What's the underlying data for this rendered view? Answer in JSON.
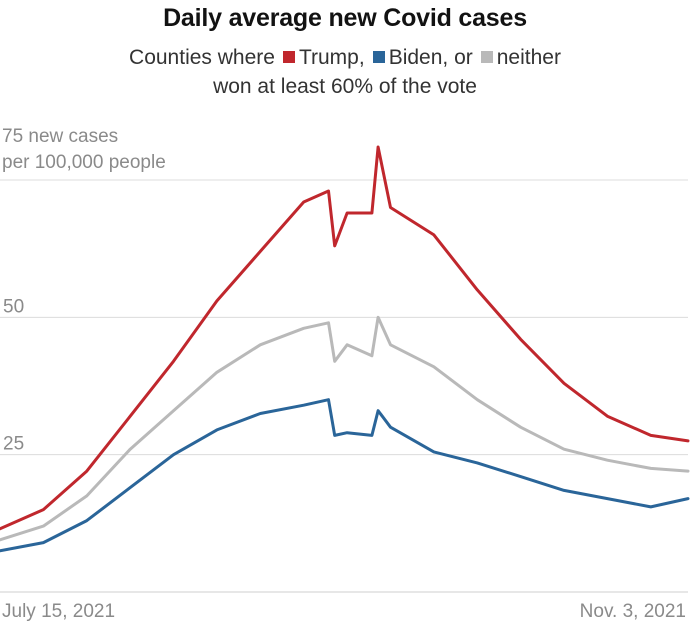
{
  "chart_data": {
    "type": "line",
    "title": "Daily average new Covid cases",
    "subtitle": {
      "prefix": "Counties where",
      "trump": "Trump,",
      "biden": "Biden, or",
      "neither": "neither",
      "line2": "won at least 60% of the vote"
    },
    "ylabel": [
      "75 new cases",
      "per 100,000 people"
    ],
    "yticks": [
      "50",
      "25"
    ],
    "ylim": [
      0,
      75
    ],
    "x_start_label": "July 15, 2021",
    "x_end_label": "Nov. 3, 2021",
    "x_start": "2021-07-15",
    "x_end": "2021-11-03",
    "grid": true,
    "legend": "inline in subtitle",
    "colors": {
      "trump": "#c0272d",
      "biden": "#2a6599",
      "neither": "#b9b9b9",
      "grid": "#dcdcdc",
      "muted_text": "#8a8a8a"
    },
    "x": [
      "2021-07-15",
      "2021-07-22",
      "2021-07-29",
      "2021-08-05",
      "2021-08-12",
      "2021-08-19",
      "2021-08-26",
      "2021-09-02",
      "2021-09-06",
      "2021-09-07",
      "2021-09-09",
      "2021-09-13",
      "2021-09-14",
      "2021-09-16",
      "2021-09-23",
      "2021-09-30",
      "2021-10-07",
      "2021-10-14",
      "2021-10-21",
      "2021-10-28",
      "2021-11-03"
    ],
    "series": [
      {
        "name": "Trump",
        "values": [
          11.5,
          15,
          22,
          32,
          42,
          53,
          62,
          71,
          73,
          63,
          69,
          69,
          81,
          70,
          65,
          55,
          46,
          38,
          32,
          28.5,
          27.5
        ]
      },
      {
        "name": "neither",
        "values": [
          9.5,
          12,
          17.5,
          26,
          33,
          40,
          45,
          48,
          49,
          42,
          45,
          43,
          50,
          45,
          41,
          35,
          30,
          26,
          24,
          22.5,
          22
        ]
      },
      {
        "name": "Biden",
        "values": [
          7.5,
          9,
          13,
          19,
          25,
          29.5,
          32.5,
          34,
          35,
          28.5,
          29,
          28.5,
          33,
          30,
          25.5,
          23.5,
          21,
          18.5,
          17,
          15.5,
          17
        ]
      }
    ]
  }
}
